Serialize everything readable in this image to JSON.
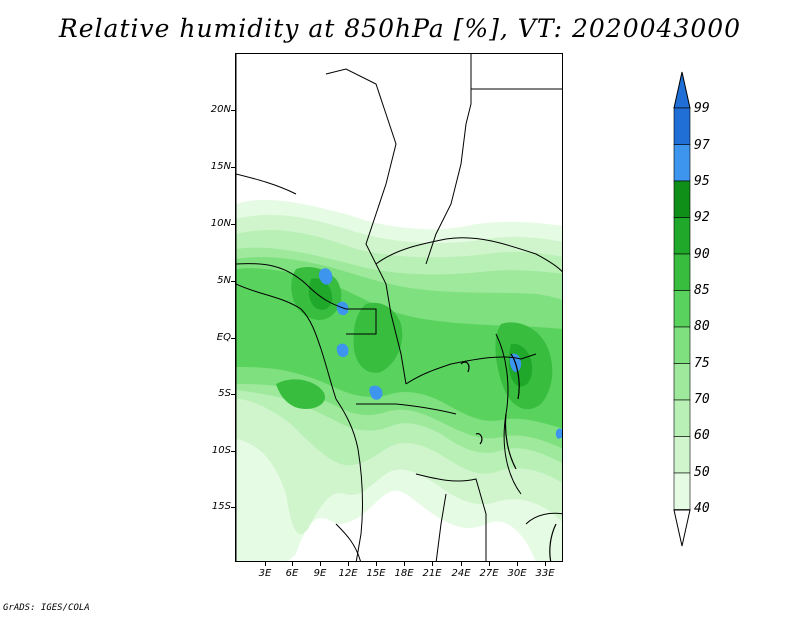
{
  "title": "Relative humidity at 850hPa [%], VT: 2020043000",
  "y_axis_labels": [
    "20N",
    "15N",
    "10N",
    "5N",
    "EQ",
    "5S",
    "10S",
    "15S"
  ],
  "x_axis_labels": [
    "3E",
    "6E",
    "9E",
    "12E",
    "15E",
    "18E",
    "21E",
    "24E",
    "27E",
    "30E",
    "33E"
  ],
  "colorbar": {
    "labels": [
      "99",
      "97",
      "95",
      "92",
      "90",
      "85",
      "80",
      "75",
      "70",
      "60",
      "50",
      "40"
    ],
    "bins": [
      {
        "from": "97",
        "to": "99",
        "color": "#1f6fd6"
      },
      {
        "from": "95",
        "to": "97",
        "color": "#3d95ee"
      },
      {
        "from": "92",
        "to": "95",
        "color": "#0f8f17"
      },
      {
        "from": "90",
        "to": "92",
        "color": "#1fa82a"
      },
      {
        "from": "85",
        "to": "90",
        "color": "#38bd3f"
      },
      {
        "from": "80",
        "to": "85",
        "color": "#5ad35e"
      },
      {
        "from": "75",
        "to": "80",
        "color": "#7fe07f"
      },
      {
        "from": "70",
        "to": "75",
        "color": "#9ee99c"
      },
      {
        "from": "60",
        "to": "70",
        "color": "#b9f0b6"
      },
      {
        "from": "50",
        "to": "60",
        "color": "#d0f5cd"
      },
      {
        "from": "40",
        "to": "50",
        "color": "#e6fbe3"
      }
    ],
    "above_max_color": "#1f6fd6",
    "below_min_color": "#ffffff"
  },
  "footer": "GrADS: IGES/COLA"
}
